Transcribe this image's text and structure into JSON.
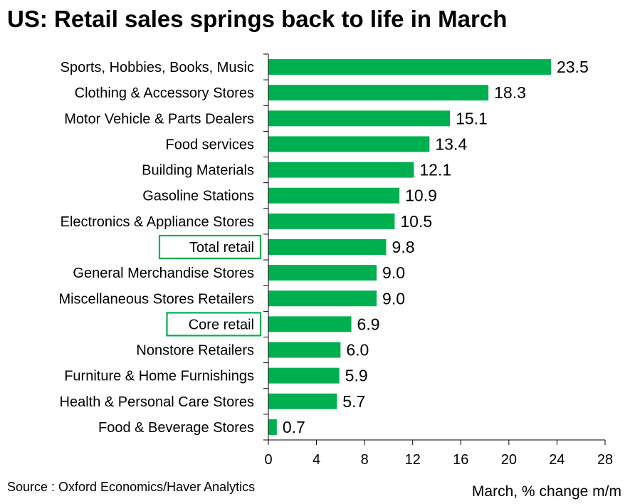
{
  "chart_data": {
    "type": "bar",
    "orientation": "horizontal",
    "title": "US: Retail sales springs back to life in March",
    "categories": [
      "Sports, Hobbies, Books, Music",
      "Clothing & Accessory Stores",
      "Motor Vehicle & Parts Dealers",
      "Food services",
      "Building Materials",
      "Gasoline Stations",
      "Electronics & Appliance Stores",
      "Total retail",
      "General Merchandise Stores",
      "Miscellaneous Stores Retailers",
      "Core retail",
      "Nonstore Retailers",
      "Furniture & Home Furnishings",
      "Health & Personal Care Stores",
      "Food & Beverage Stores"
    ],
    "values": [
      23.5,
      18.3,
      15.1,
      13.4,
      12.1,
      10.9,
      10.5,
      9.8,
      9.0,
      9.0,
      6.9,
      6.0,
      5.9,
      5.7,
      0.7
    ],
    "value_labels": [
      "23.5",
      "18.3",
      "15.1",
      "13.4",
      "12.1",
      "10.9",
      "10.5",
      "9.8",
      "9.0",
      "9.0",
      "6.9",
      "6.0",
      "5.9",
      "5.7",
      "0.7"
    ],
    "highlighted_categories": [
      "Total retail",
      "Core retail"
    ],
    "xlim": [
      0,
      28
    ],
    "xticks": [
      "0",
      "4",
      "8",
      "12",
      "16",
      "20",
      "24",
      "28"
    ],
    "xlabel": "March, % change m/m",
    "grid": false,
    "colors": {
      "bar": "#00b050",
      "highlight_box": "#00b050"
    }
  },
  "source": "Source : Oxford Economics/Haver Analytics"
}
